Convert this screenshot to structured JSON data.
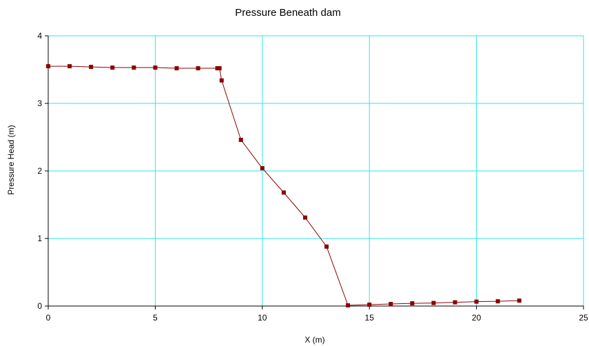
{
  "chart_data": {
    "type": "line",
    "title": "Pressure Beneath dam",
    "xlabel": "X (m)",
    "ylabel": "Pressure Head (m)",
    "xlim": [
      0,
      25
    ],
    "ylim": [
      0,
      4
    ],
    "xticks": [
      0,
      5,
      10,
      15,
      20,
      25
    ],
    "yticks": [
      0,
      1,
      2,
      3,
      4
    ],
    "grid": true,
    "colors": {
      "grid": "#2ee6e6",
      "series": "#8b0000"
    },
    "series": [
      {
        "x": [
          0,
          1,
          2,
          3,
          4,
          5,
          6,
          7,
          7.9,
          8.0,
          8.1,
          9.0,
          10.0,
          11.0,
          12.0,
          13.0,
          14.0,
          15.0,
          16.0,
          17.0,
          18.0,
          19.0,
          20.0,
          21.0,
          22.0
        ],
        "y": [
          3.55,
          3.55,
          3.54,
          3.53,
          3.53,
          3.53,
          3.52,
          3.52,
          3.52,
          3.52,
          3.34,
          2.46,
          2.04,
          1.68,
          1.31,
          0.88,
          0.01,
          0.02,
          0.03,
          0.04,
          0.045,
          0.055,
          0.065,
          0.07,
          0.08
        ]
      }
    ]
  }
}
